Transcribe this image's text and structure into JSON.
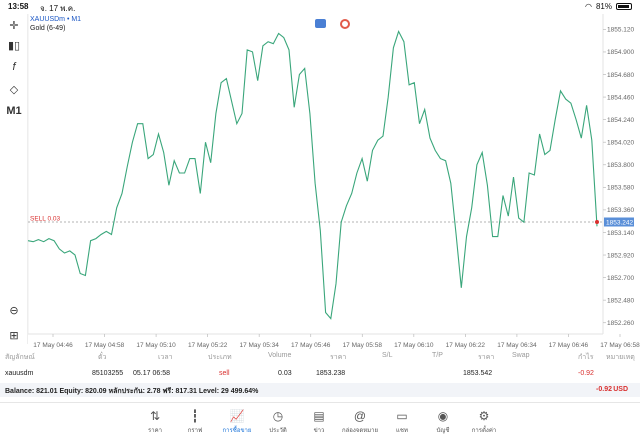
{
  "status_bar": {
    "time": "13:58",
    "date": "จ. 17 พ.ค.",
    "battery": "81%"
  },
  "chart_header": {
    "symbol": "XAUUSDm • M1",
    "description": "Gold (6-49)"
  },
  "toolbar": {
    "timeframe_label": "M1",
    "function_label": "f"
  },
  "sell_label": "SELL 0.03",
  "current_price_label": "1853.242",
  "chart_data": {
    "type": "line",
    "series": [
      {
        "color": "#3aa67b",
        "values": [
          1853.06,
          1853.05,
          1853.07,
          1853.05,
          1853.08,
          1853.06,
          1852.98,
          1852.94,
          1852.96,
          1852.92,
          1852.74,
          1852.72,
          1853.06,
          1853.08,
          1853.12,
          1853.15,
          1853.12,
          1853.38,
          1853.52,
          1853.78,
          1854.02,
          1854.2,
          1854.2,
          1853.86,
          1853.9,
          1854.1,
          1853.92,
          1853.6,
          1853.84,
          1853.72,
          1853.72,
          1853.86,
          1853.86,
          1853.52,
          1854.02,
          1853.82,
          1854.3,
          1854.6,
          1854.64,
          1854.42,
          1854.2,
          1854.3,
          1854.92,
          1854.9,
          1854.62,
          1854.96,
          1855.0,
          1854.98,
          1855.08,
          1855.04,
          1854.92,
          1854.36,
          1854.68,
          1854.74,
          1854.3,
          1853.62,
          1853.16,
          1852.36,
          1852.3,
          1852.64,
          1853.24,
          1853.4,
          1853.52,
          1853.72,
          1853.86,
          1853.64,
          1853.94,
          1854.04,
          1854.08,
          1854.46,
          1854.94,
          1855.1,
          1855.0,
          1854.58,
          1854.6,
          1854.2,
          1854.34,
          1854.06,
          1853.94,
          1853.86,
          1853.84,
          1853.62,
          1853.12,
          1852.6,
          1853.1,
          1853.38,
          1853.8,
          1853.92,
          1853.6,
          1853.1,
          1853.1,
          1853.5,
          1853.3,
          1853.68,
          1853.28,
          1853.24,
          1853.72,
          1853.7,
          1854.1,
          1853.9,
          1853.94,
          1854.24,
          1854.52,
          1854.44,
          1854.4,
          1854.24,
          1854.06,
          1854.38,
          1854.04,
          1853.2
        ]
      }
    ],
    "x_tick_labels": [
      "17 May 04:46",
      "17 May 04:58",
      "17 May 05:10",
      "17 May 05:22",
      "17 May 05:34",
      "17 May 05:46",
      "17 May 05:58",
      "17 May 06:10",
      "17 May 06:22",
      "17 May 06:34",
      "17 May 06:46",
      "17 May 06:58"
    ],
    "y_ticks": [
      1855.12,
      1854.9,
      1854.68,
      1854.46,
      1854.24,
      1854.02,
      1853.8,
      1853.58,
      1853.36,
      1853.14,
      1852.92,
      1852.7,
      1852.48,
      1852.26
    ],
    "y_tick_labels": [
      "1855.120",
      "1854.900",
      "1854.680",
      "1854.460",
      "1854.240",
      "1854.020",
      "1853.800",
      "1853.580",
      "1853.360",
      "1853.140",
      "1852.920",
      "1852.700",
      "1852.480",
      "1852.260"
    ],
    "ylim": [
      1852.15,
      1855.27
    ],
    "sell_level": 1853.242,
    "grid": false,
    "legend": "none"
  },
  "positions_table": {
    "headers": [
      "สัญลักษณ์",
      "ตั๋ว",
      "เวลา",
      "ประเภท",
      "Volume",
      "ราคา",
      "S/L",
      "T/P",
      "ราคา",
      "Swap",
      "กำไร",
      "หมายเหตุ"
    ],
    "row": {
      "symbol": "xauusdm",
      "ticket": "85103255",
      "time": "05.17 06:58",
      "type": "sell",
      "volume": "0.03",
      "open_price": "1853.238",
      "current_price": "1853.542",
      "profit": "-0.92"
    }
  },
  "balance_bar": {
    "text": "Balance: 821.01 Equity: 820.09 หลักประกัน: 2.78 ฟรี: 817.31 Level: 29 499.64%",
    "profit": "-0.92",
    "currency": "USD"
  },
  "tabs": [
    {
      "label": "ราคา",
      "icon": "quotes-icon",
      "active": false
    },
    {
      "label": "กราฟ",
      "icon": "chart-icon",
      "active": false
    },
    {
      "label": "การซื้อขาย",
      "icon": "trade-icon",
      "active": true
    },
    {
      "label": "ประวัติ",
      "icon": "history-icon",
      "active": false
    },
    {
      "label": "ข่าว",
      "icon": "news-icon",
      "active": false
    },
    {
      "label": "กล่องจดหมาย",
      "icon": "mailbox-icon",
      "active": false
    },
    {
      "label": "แชท",
      "icon": "chat-icon",
      "active": false
    },
    {
      "label": "บัญชี",
      "icon": "account-icon",
      "active": false
    },
    {
      "label": "การตั้งค่า",
      "icon": "settings-icon",
      "active": false
    }
  ],
  "colors": {
    "line": "#3aa67b",
    "sell": "#d9302f",
    "accent": "#1a73d9",
    "price_badge": "#5a8fd8"
  }
}
